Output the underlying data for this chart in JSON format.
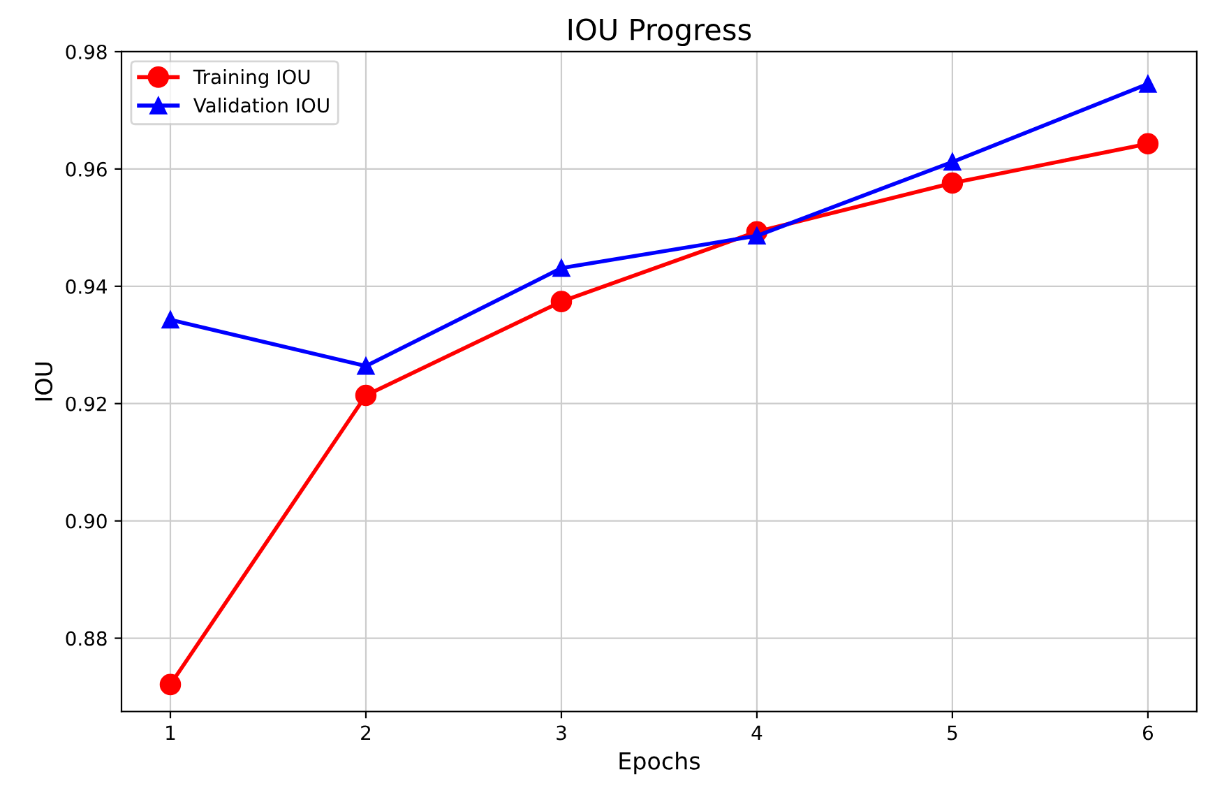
{
  "chart_data": {
    "type": "line",
    "title": "IOU Progress",
    "xlabel": "Epochs",
    "ylabel": "IOU",
    "x": [
      1,
      2,
      3,
      4,
      5,
      6
    ],
    "series": [
      {
        "name": "Training IOU",
        "color": "#ff0000",
        "marker": "circle",
        "values": [
          0.8721,
          0.9214,
          0.9374,
          0.9493,
          0.9576,
          0.9643
        ]
      },
      {
        "name": "Validation IOU",
        "color": "#0000ff",
        "marker": "triangle",
        "values": [
          0.9343,
          0.9264,
          0.9431,
          0.9486,
          0.9612,
          0.9745
        ]
      }
    ],
    "xlim": [
      0.75,
      6.25
    ],
    "xticks": [
      1,
      2,
      3,
      4,
      5,
      6
    ],
    "ylim": [
      0.8675,
      0.98
    ],
    "yticks": [
      {
        "value": 0.88,
        "label": "0.88"
      },
      {
        "value": 0.9,
        "label": "0.90"
      },
      {
        "value": 0.92,
        "label": "0.92"
      },
      {
        "value": 0.94,
        "label": "0.94"
      },
      {
        "value": 0.96,
        "label": "0.96"
      },
      {
        "value": 0.98,
        "label": "0.98"
      }
    ],
    "grid": true,
    "legend": "top left",
    "line_style": "solid"
  }
}
